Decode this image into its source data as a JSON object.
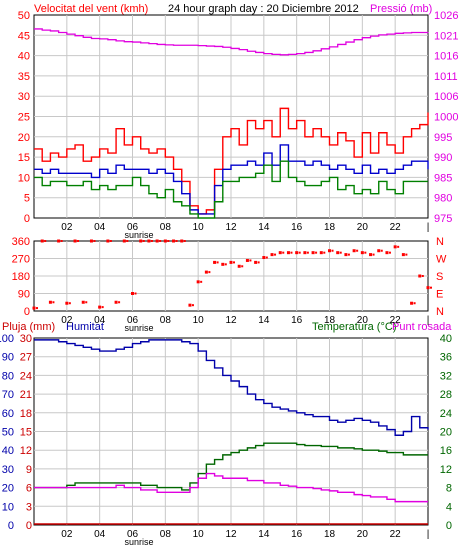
{
  "header": {
    "wind_label": "Velocitat del vent (kmh)",
    "title": "24 hour graph day : 20 Diciembre 2012",
    "pressure_label": "Pressió (mb)"
  },
  "panel3": {
    "rain_label": "Pluja (mm)",
    "humidity_label": "Humitat",
    "temp_label": "Temperatura (°C)",
    "dew_label": "Punt rosada"
  },
  "time_axis": {
    "labels": [
      "02",
      "04",
      "06",
      "08",
      "10",
      "12",
      "14",
      "16",
      "18",
      "20",
      "22"
    ],
    "sunrise_label": "sunrise"
  },
  "colors": {
    "wind_gust": "#ff0000",
    "wind_avg": "#0000cc",
    "wind_low": "#008000",
    "pressure": "#e000e0",
    "direction": "#ff0000",
    "humidity": "#0000aa",
    "temperature": "#006600",
    "dewpoint": "#e000e0",
    "rain": "#cc0000",
    "grid": "#c8c8c8"
  },
  "chart_data": [
    {
      "type": "line",
      "name": "wind-and-pressure",
      "x_hours": [
        0,
        0.5,
        1,
        1.5,
        2,
        2.5,
        3,
        3.5,
        4,
        4.5,
        5,
        5.5,
        6,
        6.5,
        7,
        7.5,
        8,
        8.5,
        9,
        9.5,
        10,
        10.5,
        11,
        11.5,
        12,
        12.5,
        13,
        13.5,
        14,
        14.5,
        15,
        15.5,
        16,
        16.5,
        17,
        17.5,
        18,
        18.5,
        19,
        19.5,
        20,
        20.5,
        21,
        21.5,
        22,
        22.5,
        23,
        23.5,
        24
      ],
      "y_left_ticks": [
        0,
        5,
        10,
        15,
        20,
        25,
        30,
        35,
        40,
        45,
        50
      ],
      "y_right_ticks": [
        975,
        980,
        985,
        990,
        995,
        1000,
        1006,
        1011,
        1016,
        1021,
        1026
      ],
      "y_left_lim": [
        0,
        50
      ],
      "y_right_lim": [
        975,
        1026
      ],
      "series": [
        {
          "name": "Velocitat del vent (kmh)",
          "axis": "left",
          "values": [
            17,
            14,
            16,
            15,
            17,
            18,
            14,
            15,
            17,
            16,
            22,
            18,
            20,
            17,
            16,
            17,
            15,
            12,
            9,
            3,
            1,
            2,
            12,
            20,
            22,
            18,
            24,
            22,
            24,
            20,
            27,
            22,
            24,
            20,
            22,
            20,
            18,
            21,
            19,
            15,
            21,
            16,
            21,
            18,
            16,
            20,
            22,
            23,
            26
          ]
        },
        {
          "axis": "left",
          "values": [
            12,
            11,
            12,
            11,
            11,
            11,
            11,
            10,
            12,
            11,
            13,
            12,
            12,
            12,
            11,
            12,
            11,
            9,
            6,
            2,
            1,
            1,
            8,
            12,
            13,
            13,
            14,
            13,
            16,
            13,
            18,
            14,
            14,
            13,
            14,
            13,
            12,
            13,
            12,
            11,
            13,
            11,
            12,
            11,
            12,
            13,
            14,
            14,
            12
          ]
        },
        {
          "axis": "left",
          "values": [
            10,
            8,
            9,
            9,
            8,
            8,
            9,
            7,
            8,
            7,
            8,
            8,
            10,
            8,
            6,
            5,
            7,
            4,
            3,
            1,
            0,
            0,
            4,
            9,
            9,
            10,
            10,
            11,
            13,
            9,
            14,
            10,
            9,
            8,
            8,
            9,
            10,
            7,
            8,
            6,
            7,
            6,
            9,
            7,
            6,
            9,
            9,
            9,
            9
          ]
        },
        {
          "name": "Pressió (mb)",
          "axis": "right",
          "values": [
            1022.5,
            1022.2,
            1022,
            1021.6,
            1021.2,
            1020.8,
            1020.4,
            1020.1,
            1020,
            1019.8,
            1019.5,
            1019.3,
            1019.2,
            1019,
            1018.8,
            1018.6,
            1018.5,
            1018.4,
            1018.4,
            1018.4,
            1018.3,
            1018.2,
            1018.1,
            1017.9,
            1017.6,
            1017.3,
            1016.9,
            1016.6,
            1016.3,
            1016.1,
            1016,
            1016.1,
            1016.3,
            1016.6,
            1017,
            1017.5,
            1018,
            1018.6,
            1019.2,
            1019.8,
            1020.3,
            1020.7,
            1021,
            1021.2,
            1021.4,
            1021.5,
            1021.6,
            1021.6,
            1021.7
          ]
        }
      ]
    },
    {
      "type": "scatter",
      "name": "wind-direction",
      "y_ticks": [
        0,
        90,
        180,
        270,
        360
      ],
      "y_right_ticks": [
        "N",
        "W",
        "S",
        "E",
        "N"
      ],
      "y_lim": [
        0,
        360
      ],
      "x_hours": [
        0,
        0.5,
        1,
        1.5,
        2,
        2.5,
        3,
        3.5,
        4,
        4.5,
        5,
        5.5,
        6,
        6.5,
        7,
        7.5,
        8,
        8.5,
        9,
        9.5,
        10,
        10.5,
        11,
        11.5,
        12,
        12.5,
        13,
        13.5,
        14,
        14.5,
        15,
        15.5,
        16,
        16.5,
        17,
        17.5,
        18,
        18.5,
        19,
        19.5,
        20,
        20.5,
        21,
        21.5,
        22,
        22.5,
        23,
        23.5,
        24
      ],
      "values": [
        15,
        360,
        45,
        360,
        40,
        360,
        45,
        360,
        20,
        360,
        45,
        360,
        90,
        360,
        360,
        360,
        360,
        360,
        360,
        30,
        150,
        200,
        250,
        240,
        250,
        230,
        260,
        250,
        275,
        290,
        300,
        300,
        300,
        300,
        300,
        300,
        310,
        300,
        290,
        310,
        300,
        290,
        310,
        300,
        330,
        290,
        40,
        180,
        120
      ]
    },
    {
      "type": "line",
      "name": "rain-humidity-temperature",
      "x_hours": [
        0,
        0.5,
        1,
        1.5,
        2,
        2.5,
        3,
        3.5,
        4,
        4.5,
        5,
        5.5,
        6,
        6.5,
        7,
        7.5,
        8,
        8.5,
        9,
        9.5,
        10,
        10.5,
        11,
        11.5,
        12,
        12.5,
        13,
        13.5,
        14,
        14.5,
        15,
        15.5,
        16,
        16.5,
        17,
        17.5,
        18,
        18.5,
        19,
        19.5,
        20,
        20.5,
        21,
        21.5,
        22,
        22.5,
        23,
        23.5,
        24
      ],
      "y_left_ticks": [
        0,
        10,
        20,
        30,
        40,
        50,
        60,
        70,
        80,
        90,
        100
      ],
      "y_rain_ticks": [
        0,
        3,
        6,
        9,
        12,
        15,
        18,
        21,
        24,
        27,
        30
      ],
      "y_right_ticks": [
        0,
        4,
        8,
        12,
        16,
        20,
        24,
        28,
        32,
        36,
        40
      ],
      "y_left_lim": [
        0,
        100
      ],
      "y_right_lim": [
        0,
        40
      ],
      "series": [
        {
          "name": "Pluja (mm)",
          "axis": "rain",
          "values": [
            0,
            0,
            0,
            0,
            0,
            0,
            0,
            0,
            0,
            0,
            0,
            0,
            0,
            0,
            0,
            0,
            0,
            0,
            0,
            0,
            0,
            0,
            0,
            0,
            0,
            0,
            0,
            0,
            0,
            0,
            0,
            0,
            0,
            0,
            0,
            0,
            0,
            0,
            0,
            0,
            0,
            0,
            0,
            0,
            0,
            0,
            0,
            0,
            0
          ]
        },
        {
          "name": "Humitat",
          "axis": "left",
          "values": [
            99,
            99,
            99,
            98,
            97,
            96,
            95,
            94,
            93,
            93,
            94,
            95,
            97,
            98,
            99,
            99,
            99,
            99,
            98,
            97,
            93,
            88,
            84,
            80,
            77,
            74,
            70,
            67,
            65,
            63,
            62,
            61,
            60,
            59,
            58,
            58,
            56,
            55,
            56,
            57,
            56,
            55,
            53,
            51,
            48,
            50,
            58,
            52,
            51
          ]
        },
        {
          "name": "Temperatura (°C)",
          "axis": "right",
          "values": [
            8,
            8,
            8,
            8,
            8.5,
            9,
            9,
            9,
            9,
            9,
            9,
            9,
            9,
            8.5,
            8.5,
            8,
            8,
            8,
            7.5,
            9,
            11,
            13,
            14,
            15,
            15.5,
            16,
            16.5,
            17,
            17.5,
            17.5,
            17.5,
            17.5,
            17.2,
            17,
            17,
            16.8,
            16.8,
            16.5,
            16.5,
            16.3,
            16,
            16,
            15.8,
            15.5,
            15.5,
            15,
            15,
            15,
            15
          ]
        },
        {
          "name": "Punt rosada",
          "axis": "right",
          "values": [
            8,
            8,
            8,
            8,
            8,
            8,
            8,
            8,
            8,
            8,
            8.5,
            8,
            8,
            7.5,
            7.5,
            7,
            7,
            7,
            7,
            8,
            10,
            11,
            10.5,
            10,
            10,
            10,
            9.5,
            9.5,
            9,
            9,
            8.5,
            8.3,
            8,
            8,
            7.8,
            7.5,
            7.3,
            7,
            7,
            6.5,
            6.3,
            6,
            6,
            5.5,
            5,
            5,
            5,
            5,
            5
          ]
        }
      ]
    }
  ]
}
